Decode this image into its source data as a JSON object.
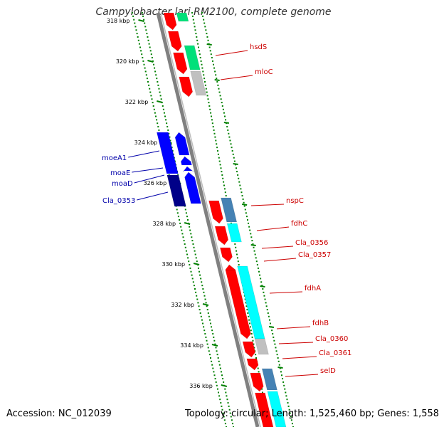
{
  "title": "Campylobacter lari RM2100, complete genome",
  "footer": {
    "accession": "Accession: NC_012039",
    "summary": "Topology: circular; Length: 1,525,460 bp; Genes: 1,558"
  },
  "colors": {
    "forward_gene": "#ff0000",
    "reverse_gene": "#0000ff",
    "cyan_feature": "#00ffff",
    "steel_feature": "#4682b4",
    "green_feature": "#00e07a",
    "gray_feature": "#c0c0c0",
    "backbone": "#808080",
    "tick": "#008000",
    "forward_label": "#cc0000",
    "reverse_label": "#0000aa"
  },
  "ticks": [
    "318 kbp",
    "320 kbp",
    "322 kbp",
    "324 kbp",
    "326 kbp",
    "328 kbp",
    "330 kbp",
    "332 kbp",
    "334 kbp",
    "336 kbp"
  ],
  "labels": {
    "forward": [
      "hsdS",
      "mloC",
      "nspC",
      "fdhC",
      "Cla_0356",
      "Cla_0357",
      "fdhA",
      "fdhB",
      "Cla_0360",
      "Cla_0361",
      "selD"
    ],
    "reverse": [
      "moeA1",
      "moaE",
      "moaD",
      "Cla_0353"
    ]
  }
}
